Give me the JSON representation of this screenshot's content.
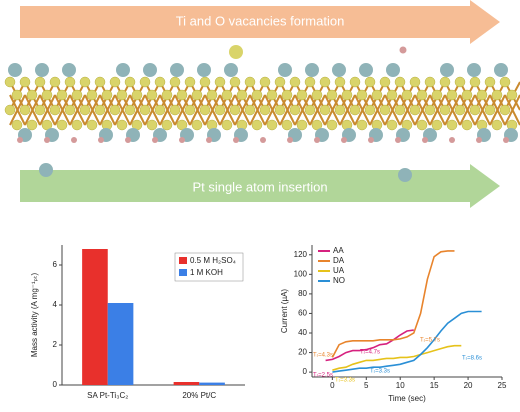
{
  "illustration": {
    "top_arrow": "Ti and O vacancies formation",
    "bottom_arrow": "Pt single atom insertion"
  },
  "chart_data": [
    {
      "type": "bar",
      "ylabel": "Mass activity (A mg⁻¹ₚₜ)",
      "categories": [
        "SA Pt-Ti₃C₂",
        "20% Pt/C"
      ],
      "series": [
        {
          "name": "0.5 M H₂SO₄",
          "color": "#e8302c",
          "values": [
            6.8,
            0.15
          ]
        },
        {
          "name": "1 M KOH",
          "color": "#3b7fe6",
          "values": [
            4.1,
            0.12
          ]
        }
      ],
      "ylim": [
        0,
        7
      ],
      "yticks": [
        0,
        2,
        4,
        6
      ],
      "legend": "upper-right"
    },
    {
      "type": "line",
      "xlabel": "Time (sec)",
      "ylabel": "Current (µA)",
      "x": [
        -1,
        0,
        1,
        2,
        3,
        4,
        5,
        6,
        7,
        8,
        9,
        10,
        11,
        12,
        13,
        14,
        15,
        16,
        17,
        18,
        19,
        20,
        21,
        22
      ],
      "series": [
        {
          "name": "AA",
          "color": "#d6217f",
          "values": [
            12,
            13,
            16,
            20,
            22,
            22,
            23,
            25,
            28,
            29,
            33,
            38,
            42,
            43,
            null,
            null,
            null,
            null,
            null,
            null,
            null,
            null,
            null,
            null
          ]
        },
        {
          "name": "DA",
          "color": "#e8842c",
          "values": [
            null,
            15,
            28,
            31,
            32,
            32,
            32,
            32,
            33,
            33,
            33,
            34,
            36,
            40,
            60,
            95,
            118,
            123,
            124,
            124,
            null,
            null,
            null,
            null
          ]
        },
        {
          "name": "UA",
          "color": "#e6c21a",
          "values": [
            null,
            2,
            4,
            5,
            8,
            10,
            12,
            12,
            13,
            14,
            14,
            15,
            15,
            16,
            18,
            20,
            22,
            24,
            26,
            27,
            27,
            null,
            null,
            null
          ]
        },
        {
          "name": "NO",
          "color": "#2a8fd6",
          "values": [
            null,
            0,
            1,
            2,
            3,
            4,
            4,
            5,
            5,
            6,
            7,
            8,
            10,
            12,
            18,
            25,
            33,
            42,
            50,
            55,
            60,
            62,
            62,
            62
          ]
        }
      ],
      "xlim": [
        -3,
        25
      ],
      "xticks": [
        0,
        5,
        10,
        15,
        20,
        25
      ],
      "ylim": [
        -5,
        130
      ],
      "yticks": [
        0,
        20,
        40,
        60,
        80,
        100,
        120
      ],
      "legend": "upper-left",
      "annotations": [
        {
          "text": "Tᵣ=4.3s",
          "color": "#e8842c"
        },
        {
          "text": "Tᵣ=2.5s",
          "color": "#d6217f"
        },
        {
          "text": "Tᵣ=3.3s",
          "color": "#e6c21a"
        },
        {
          "text": "Tᵣ=3.3s",
          "color": "#2a8fd6"
        },
        {
          "text": "Tᵣ=4.7s",
          "color": "#d6217f"
        },
        {
          "text": "Tᵣ=5.7s",
          "color": "#e8842c"
        },
        {
          "text": "Tᵣ=8.6s",
          "color": "#2a8fd6"
        }
      ]
    }
  ]
}
